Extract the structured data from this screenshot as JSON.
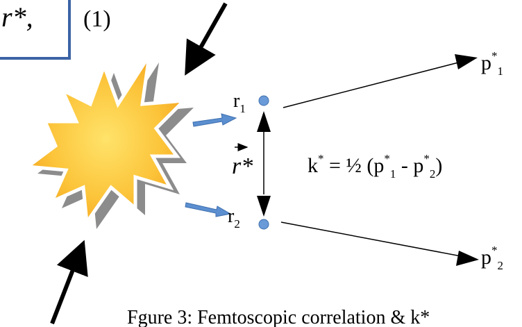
{
  "equation_box": {
    "text": "r*,"
  },
  "equation_number": "(1)",
  "r1": {
    "base": "r",
    "sub": "1"
  },
  "r2": {
    "base": "r",
    "sub": "2"
  },
  "p1": {
    "base": "p",
    "sup": "*",
    "sub": "1"
  },
  "p2": {
    "base": "p",
    "sup": "*",
    "sub": "2"
  },
  "separation": "r*",
  "formula": [
    "k",
    "*",
    " = ½ (p",
    "*",
    "1",
    " - p",
    "*",
    "2",
    ")"
  ],
  "caption": "Fgure 3: Femtoscopic correlation & k*"
}
